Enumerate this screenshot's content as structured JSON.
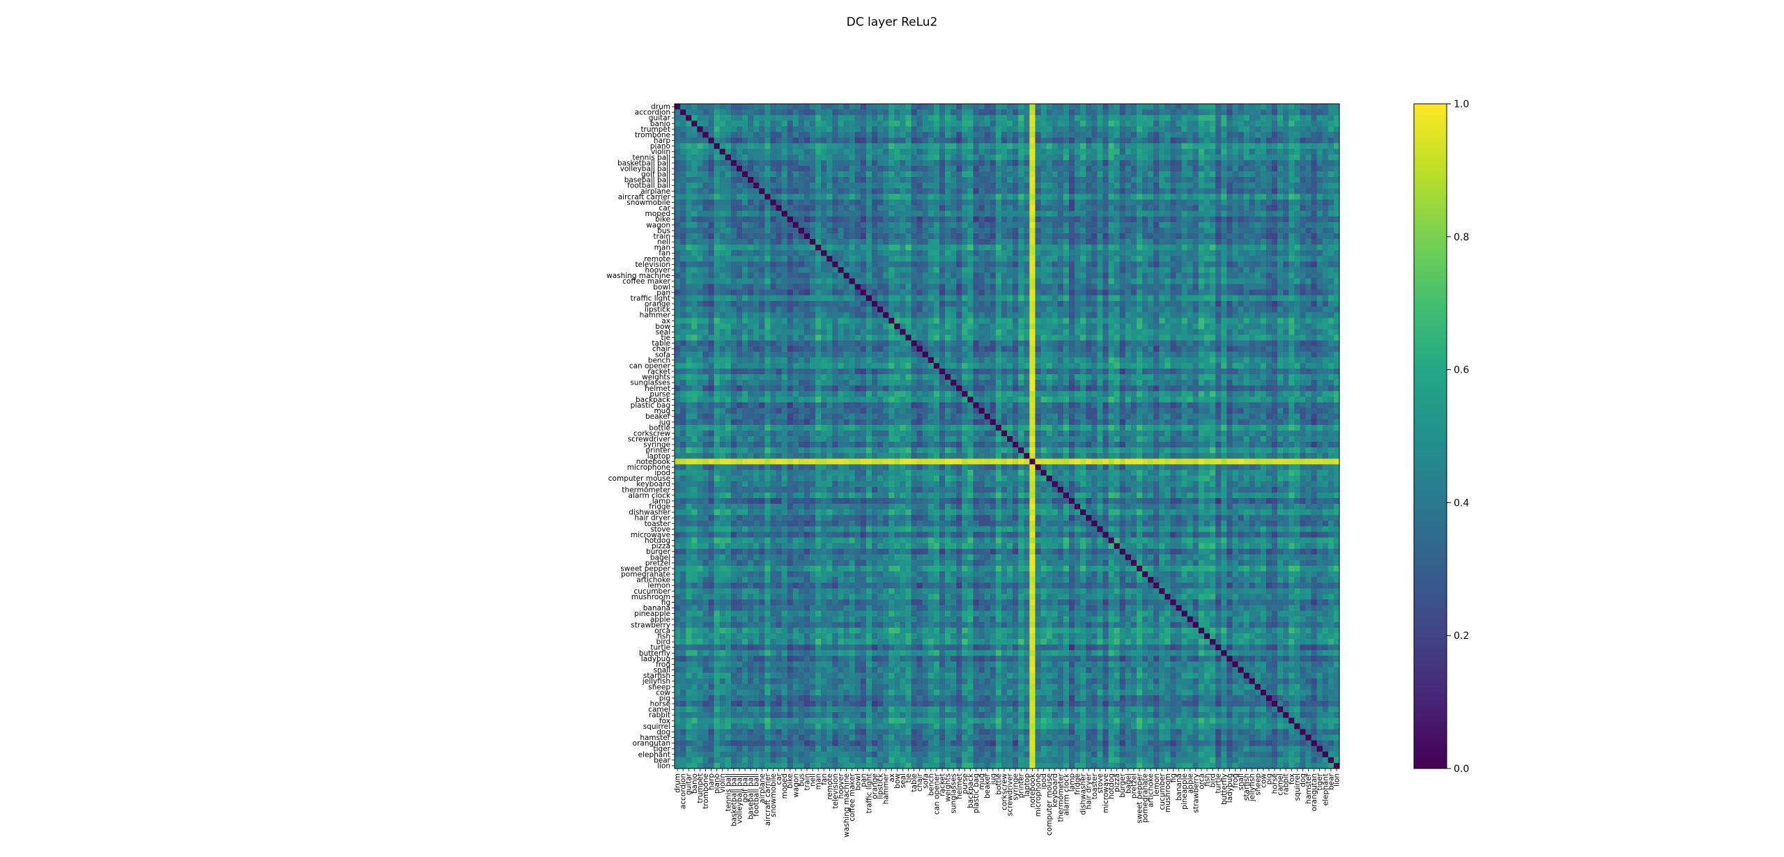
{
  "chart_data": {
    "type": "heatmap",
    "title": "DC layer ReLu2",
    "colormap": "viridis",
    "colorbar": {
      "range": [
        0.0,
        1.0
      ],
      "ticks": [
        "0.0",
        "0.2",
        "0.4",
        "0.6",
        "0.8",
        "1.0"
      ]
    },
    "labels": [
      "drum",
      "accordion",
      "guitar",
      "banjo",
      "trumpet",
      "trombone",
      "harp",
      "piano",
      "violin",
      "tennis ball",
      "basketball ball",
      "volleyball ball",
      "golf ball",
      "baseball ball",
      "football ball",
      "airplane",
      "aircraft carrier",
      "snowmobile",
      "car",
      "moped",
      "bike",
      "wagon",
      "bus",
      "train",
      "nell",
      "man",
      "fan",
      "remote",
      "television",
      "hoover",
      "washing machine",
      "coffee maker",
      "bowl",
      "pan",
      "traffic light",
      "orange",
      "lipstick",
      "hammer",
      "ax",
      "bow",
      "seal",
      "tie",
      "table",
      "chair",
      "sofa",
      "bench",
      "can opener",
      "racket",
      "weights",
      "sunglasses",
      "helmet",
      "purse",
      "backpack",
      "plastic bag",
      "mug",
      "beaker",
      "jug",
      "bottle",
      "corkscrew",
      "screwdriver",
      "syringe",
      "printer",
      "laptop",
      "notebook",
      "microphone",
      "ipod",
      "computer mouse",
      "keyboard",
      "thermometer",
      "alarm clock",
      "lamp",
      "fridge",
      "dishwasher",
      "hair dryer",
      "toaster",
      "stove",
      "microwave",
      "hotdog",
      "pizza",
      "burger",
      "bagel",
      "pretzel",
      "sweet pepper",
      "pomegranate",
      "artichoke",
      "lemon",
      "cucumber",
      "mushroom",
      "fig",
      "banana",
      "pineapple",
      "apple",
      "strawberry",
      "orca",
      "fish",
      "bird",
      "turtle",
      "butterfly",
      "ladybug",
      "frog",
      "snail",
      "starfish",
      "jellyfish",
      "sheep",
      "cow",
      "pig",
      "horse",
      "camel",
      "rabbit",
      "fox",
      "squirrel",
      "dog",
      "hamster",
      "orangutan",
      "tiger",
      "elephant",
      "bear",
      "lion"
    ],
    "highlight": {
      "label": "notebook",
      "description": "row and column with uniformly high similarity"
    },
    "diagonal": 0.0,
    "typical_range": [
      0.2,
      0.65
    ]
  }
}
